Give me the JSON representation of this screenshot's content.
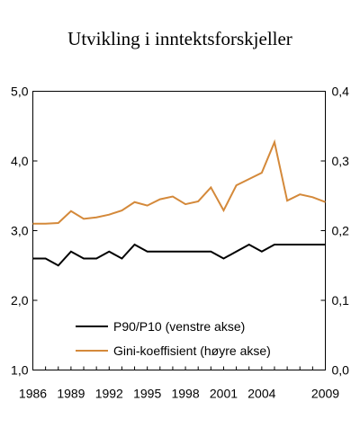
{
  "chart_data": {
    "type": "line",
    "title": "Utvikling i inntektsforskjeller",
    "x": [
      1986,
      1987,
      1988,
      1989,
      1990,
      1991,
      1992,
      1993,
      1994,
      1995,
      1996,
      1997,
      1998,
      1999,
      2000,
      2001,
      2002,
      2003,
      2004,
      2005,
      2006,
      2007,
      2008,
      2009
    ],
    "x_tick_labels": [
      "1986",
      "1989",
      "1992",
      "1995",
      "1998",
      "2001",
      "2004",
      "2009"
    ],
    "xlim": [
      1986,
      2009
    ],
    "y_left": {
      "ylim": [
        1.0,
        5.0
      ],
      "tick_labels": [
        "1,0",
        "2,0",
        "3,0",
        "4,0",
        "5,0"
      ]
    },
    "y_right": {
      "ylim": [
        0.0,
        0.4
      ],
      "tick_labels": [
        "0,0",
        "0,1",
        "0,2",
        "0,3",
        "0,4"
      ]
    },
    "grid": false,
    "legend_position": "inside-bottom-left",
    "series": [
      {
        "name": "P90/P10 (venstre akse)",
        "axis": "left",
        "color": "#000000",
        "values": [
          2.6,
          2.6,
          2.5,
          2.7,
          2.6,
          2.6,
          2.7,
          2.6,
          2.8,
          2.7,
          2.7,
          2.7,
          2.7,
          2.7,
          2.7,
          2.6,
          2.7,
          2.8,
          2.7,
          2.8,
          2.8,
          2.8,
          2.8,
          2.8
        ]
      },
      {
        "name": "Gini-koeffisient (høyre akse)",
        "axis": "right",
        "color": "#d4893a",
        "values": [
          0.21,
          0.21,
          0.211,
          0.228,
          0.217,
          0.219,
          0.223,
          0.229,
          0.241,
          0.236,
          0.245,
          0.249,
          0.238,
          0.242,
          0.262,
          0.229,
          0.265,
          0.274,
          0.283,
          0.327,
          0.243,
          0.252,
          0.248,
          0.241
        ]
      }
    ]
  }
}
